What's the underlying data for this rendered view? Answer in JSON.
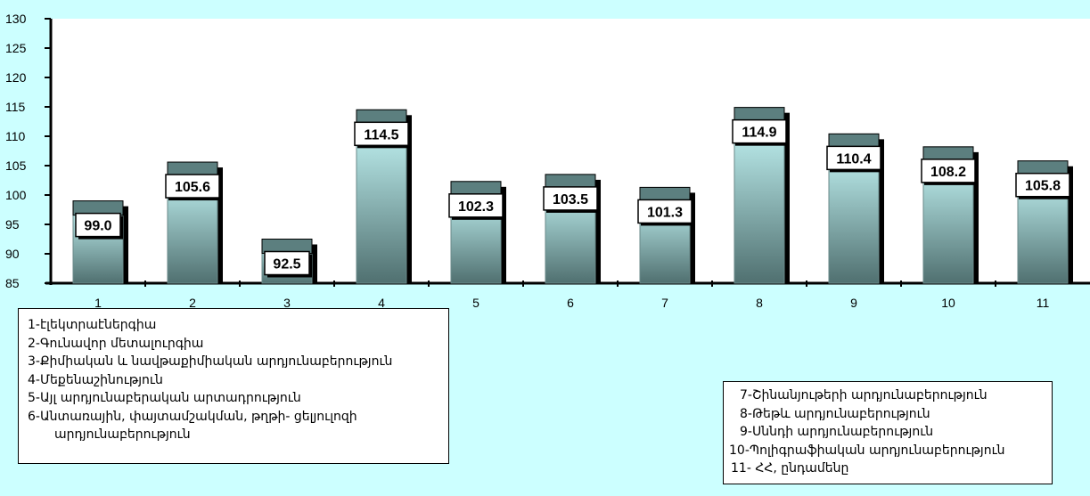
{
  "chart_data": {
    "type": "bar",
    "categories": [
      "1",
      "2",
      "3",
      "4",
      "5",
      "6",
      "7",
      "8",
      "9",
      "10",
      "11"
    ],
    "values": [
      99.0,
      105.6,
      92.5,
      114.5,
      102.3,
      103.5,
      101.3,
      114.9,
      110.4,
      108.2,
      105.8
    ],
    "data_labels": [
      "99.0",
      "105.6",
      "92.5",
      "114.5",
      "102.3",
      "103.5",
      "101.3",
      "114.9",
      "110.4",
      "108.2",
      "105.8"
    ],
    "ylim": [
      85,
      130
    ],
    "yticks": [
      "85",
      "90",
      "95",
      "100",
      "105",
      "110",
      "115",
      "120",
      "125",
      "130"
    ],
    "grid": false,
    "title": "",
    "xlabel": "",
    "ylabel": "",
    "colors": {
      "background": "#ccffff",
      "plot_area": "#ffffff",
      "bar_top": "#5c7f7f",
      "bar_body_light": "#ccffff",
      "bar_body_dark": "#507070",
      "shadow": "#000000"
    }
  },
  "legend_left": [
    "1-էլեկտրաէներգիա",
    "2-Գունավոր մետալուրգիա",
    "3-Քիմիական և նավթաքիմիական արդյունաբերություն",
    "4-Մեքենաշինություն",
    "5-Այլ արդյունաբերական արտադրություն",
    "6-Անտառային, փայտամշակման, թղթի- ցելյուլոզի",
    "արդյունաբերություն"
  ],
  "legend_right": [
    "7-Շինանյութերի արդյունաբերություն",
    "8-Թեթև արդյունաբերություն",
    "9-Սննդի արդյունաբերություն",
    "10-Պոլիգրաֆիական  արդյունաբերություն",
    "11- ՀՀ, ընդամենը"
  ]
}
